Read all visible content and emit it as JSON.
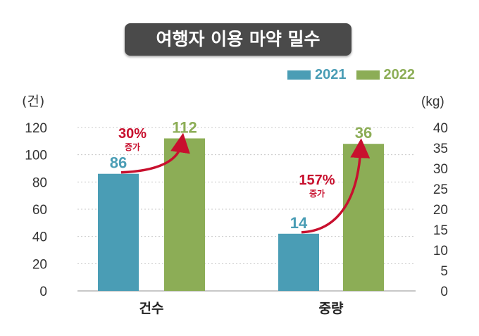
{
  "chart_data": {
    "type": "bar",
    "title": "여행자 이용 마약 밀수",
    "categories": [
      "건수",
      "중량"
    ],
    "series": [
      {
        "name": "2021",
        "color": "#4a9db5",
        "values": [
          86,
          14
        ]
      },
      {
        "name": "2022",
        "color": "#8cad56",
        "values": [
          112,
          36
        ]
      }
    ],
    "axes": {
      "left": {
        "unit": "(건)",
        "ylim": [
          0,
          120
        ],
        "ticks": [
          "0",
          "20",
          "40",
          "60",
          "80",
          "100",
          "120"
        ],
        "applies_to": "건수"
      },
      "right": {
        "unit": "(kg)",
        "ylim": [
          0,
          40
        ],
        "ticks": [
          "0",
          "5",
          "10",
          "15",
          "20",
          "25",
          "30",
          "35",
          "40"
        ],
        "applies_to": "중량"
      }
    },
    "data_labels": [
      {
        "category": "건수",
        "series": "2021",
        "text": "86"
      },
      {
        "category": "건수",
        "series": "2022",
        "text": "112"
      },
      {
        "category": "중량",
        "series": "2021",
        "text": "14"
      },
      {
        "category": "중량",
        "series": "2022",
        "text": "36"
      }
    ],
    "annotations": [
      {
        "category": "건수",
        "percent": "30%",
        "label": "증가"
      },
      {
        "category": "중량",
        "percent": "157%",
        "label": "증가"
      }
    ],
    "grid": "dotted horizontal",
    "legend_position": "top-right",
    "annotation_color": "#c8102e"
  }
}
